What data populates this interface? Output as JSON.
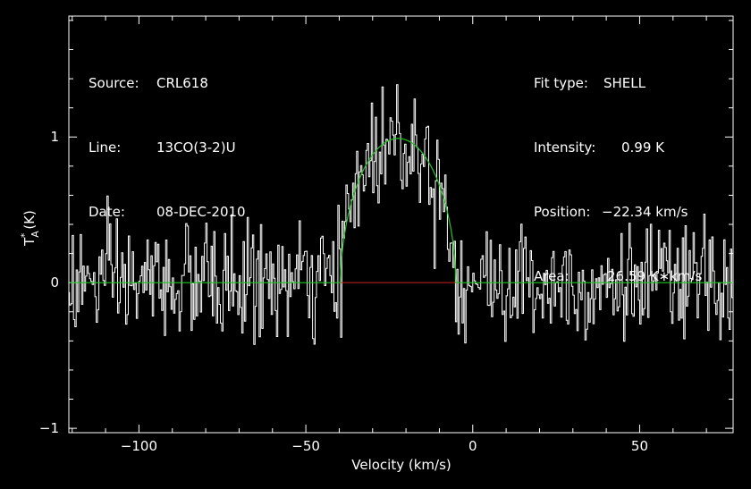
{
  "info_left": {
    "source_label": "Source:",
    "source_value": "CRL618",
    "line_label": "Line:",
    "line_value": "13CO(3-2)U",
    "date_label": "Date:",
    "date_value": "08-DEC-2010"
  },
  "info_right": {
    "fit_label": "Fit type:",
    "fit_value": "SHELL",
    "intensity_label": "Intensity:",
    "intensity_value": "0.99 K",
    "position_label": "Position:",
    "position_value": "−22.34 km/s",
    "area_label": "Area:",
    "area_value": "26.59 K∗km/s"
  },
  "chart_data": {
    "type": "line",
    "xlabel": "Velocity (km/s)",
    "ylabel_main": "T",
    "ylabel_sup": "*",
    "ylabel_sub": "A",
    "ylabel_unit": "(K)",
    "xlim": [
      -121,
      78
    ],
    "ylim": [
      -1.03,
      1.83
    ],
    "x_ticks": [
      -100,
      -50,
      0,
      50
    ],
    "x_tick_labels": [
      "−100",
      "−50",
      "0",
      "50"
    ],
    "y_ticks": [
      -1,
      0,
      1
    ],
    "y_tick_labels": [
      "−1",
      "0",
      "1"
    ],
    "x_minor_step": 10,
    "y_minor_step": 0.2,
    "colors": {
      "data": "#ffffff",
      "fit": "#22c522",
      "baseline": "#d02020",
      "frame": "#ffffff"
    },
    "series": [
      {
        "style": "spectrum",
        "x_start": -121,
        "x_step": 0.4,
        "points": 498,
        "noise_rms": 0.2,
        "profile": "shell"
      },
      {
        "style": "fit",
        "profile": "shell",
        "peak": 0.99,
        "center": -22.34,
        "halfwidth": 17.3,
        "horn": 0.3
      }
    ],
    "baseline": {
      "y": 0,
      "x_range": [
        -39.6,
        -5.1
      ]
    }
  }
}
